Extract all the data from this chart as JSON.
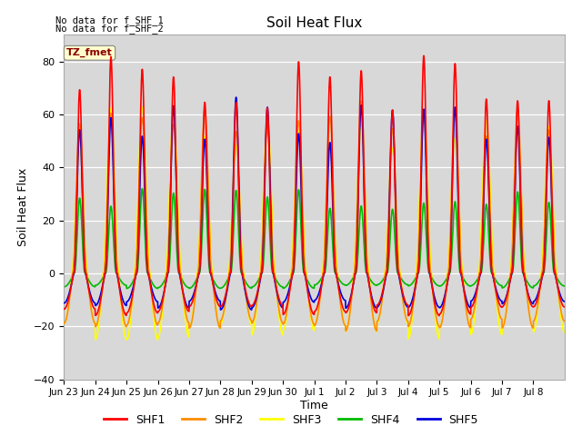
{
  "title": "Soil Heat Flux",
  "ylabel": "Soil Heat Flux",
  "xlabel": "Time",
  "ylim": [
    -40,
    90
  ],
  "yticks": [
    -40,
    -20,
    0,
    20,
    40,
    60,
    80
  ],
  "bg_color": "#d8d8d8",
  "fig_color": "#ffffff",
  "annotation_line1": "No data for f_SHF_1",
  "annotation_line2": "No data for f_SHF_2",
  "tz_label": "TZ_fmet",
  "series_colors": {
    "SHF1": "#ff0000",
    "SHF2": "#ff8c00",
    "SHF3": "#ffff00",
    "SHF4": "#00bb00",
    "SHF5": "#0000dd"
  },
  "x_tick_labels": [
    "Jun 23",
    "Jun 24",
    "Jun 25",
    "Jun 26",
    "Jun 27",
    "Jun 28",
    "Jun 29",
    "Jun 30",
    "Jul 1",
    "Jul 2",
    "Jul 3",
    "Jul 4",
    "Jul 5",
    "Jul 6",
    "Jul 7",
    "Jul 8"
  ],
  "n_days": 16,
  "points_per_day": 144,
  "line_width": 1.2
}
